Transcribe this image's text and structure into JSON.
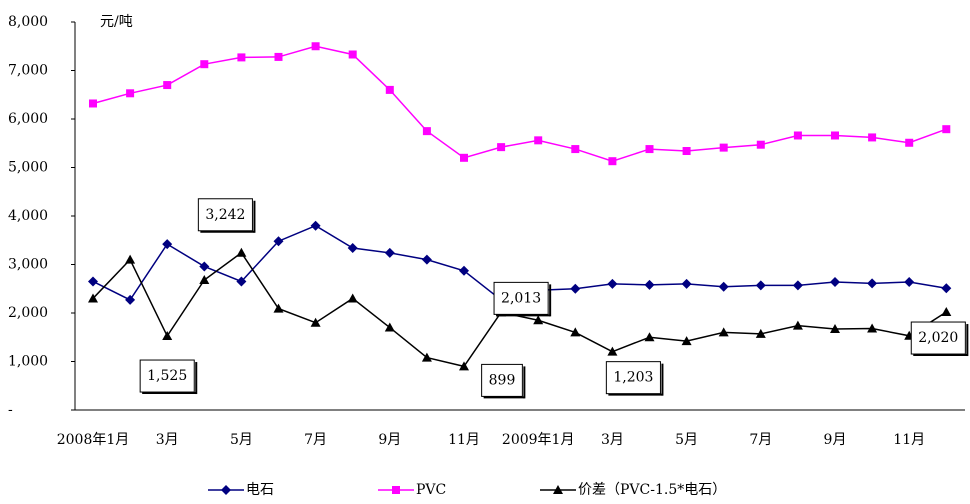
{
  "chart_data": {
    "type": "line",
    "y_label": "元/吨",
    "categories": [
      "2008年1月",
      null,
      "3月",
      null,
      "5月",
      null,
      "7月",
      null,
      "9月",
      null,
      "11月",
      null,
      "2009年1月",
      null,
      "3月",
      null,
      "5月",
      null,
      "7月",
      null,
      "9月",
      null,
      "11月",
      null
    ],
    "ylim": [
      0,
      8000
    ],
    "yticks": [
      {
        "value": 0,
        "label": "-"
      },
      {
        "value": 1000,
        "label": "1,000"
      },
      {
        "value": 2000,
        "label": "2,000"
      },
      {
        "value": 3000,
        "label": "3,000"
      },
      {
        "value": 4000,
        "label": "4,000"
      },
      {
        "value": 5000,
        "label": "5,000"
      },
      {
        "value": 6000,
        "label": "6,000"
      },
      {
        "value": 7000,
        "label": "7,000"
      },
      {
        "value": 8000,
        "label": "8,000"
      }
    ],
    "legend": "bottom",
    "series": [
      {
        "name": "电石",
        "color": "#000080",
        "marker": "diamond",
        "values": [
          2650,
          2270,
          3420,
          2960,
          2650,
          3480,
          3800,
          3340,
          3240,
          3100,
          2870,
          2270,
          2470,
          2500,
          2600,
          2580,
          2600,
          2540,
          2570,
          2570,
          2640,
          2610,
          2640,
          2510
        ]
      },
      {
        "name": "PVC",
        "color": "#ff00ff",
        "marker": "square",
        "values": [
          6320,
          6530,
          6700,
          7130,
          7270,
          7280,
          7500,
          7330,
          6600,
          5750,
          5200,
          5420,
          5560,
          5380,
          5130,
          5380,
          5340,
          5410,
          5470,
          5660,
          5660,
          5620,
          5510,
          5790
        ]
      },
      {
        "name": "价差（PVC-1.5*电石）",
        "color": "#000000",
        "marker": "triangle",
        "values": [
          2300,
          3100,
          1525,
          2680,
          3242,
          2090,
          1800,
          2300,
          1700,
          1080,
          899,
          2013,
          1850,
          1600,
          1203,
          1500,
          1420,
          1600,
          1570,
          1740,
          1670,
          1680,
          1530,
          2020
        ],
        "value_labels": [
          null,
          null,
          "1,525",
          null,
          "3,242",
          null,
          null,
          null,
          null,
          null,
          "899",
          "2,013",
          null,
          null,
          "1,203",
          null,
          null,
          null,
          null,
          null,
          null,
          null,
          null,
          "2,020"
        ]
      }
    ]
  }
}
